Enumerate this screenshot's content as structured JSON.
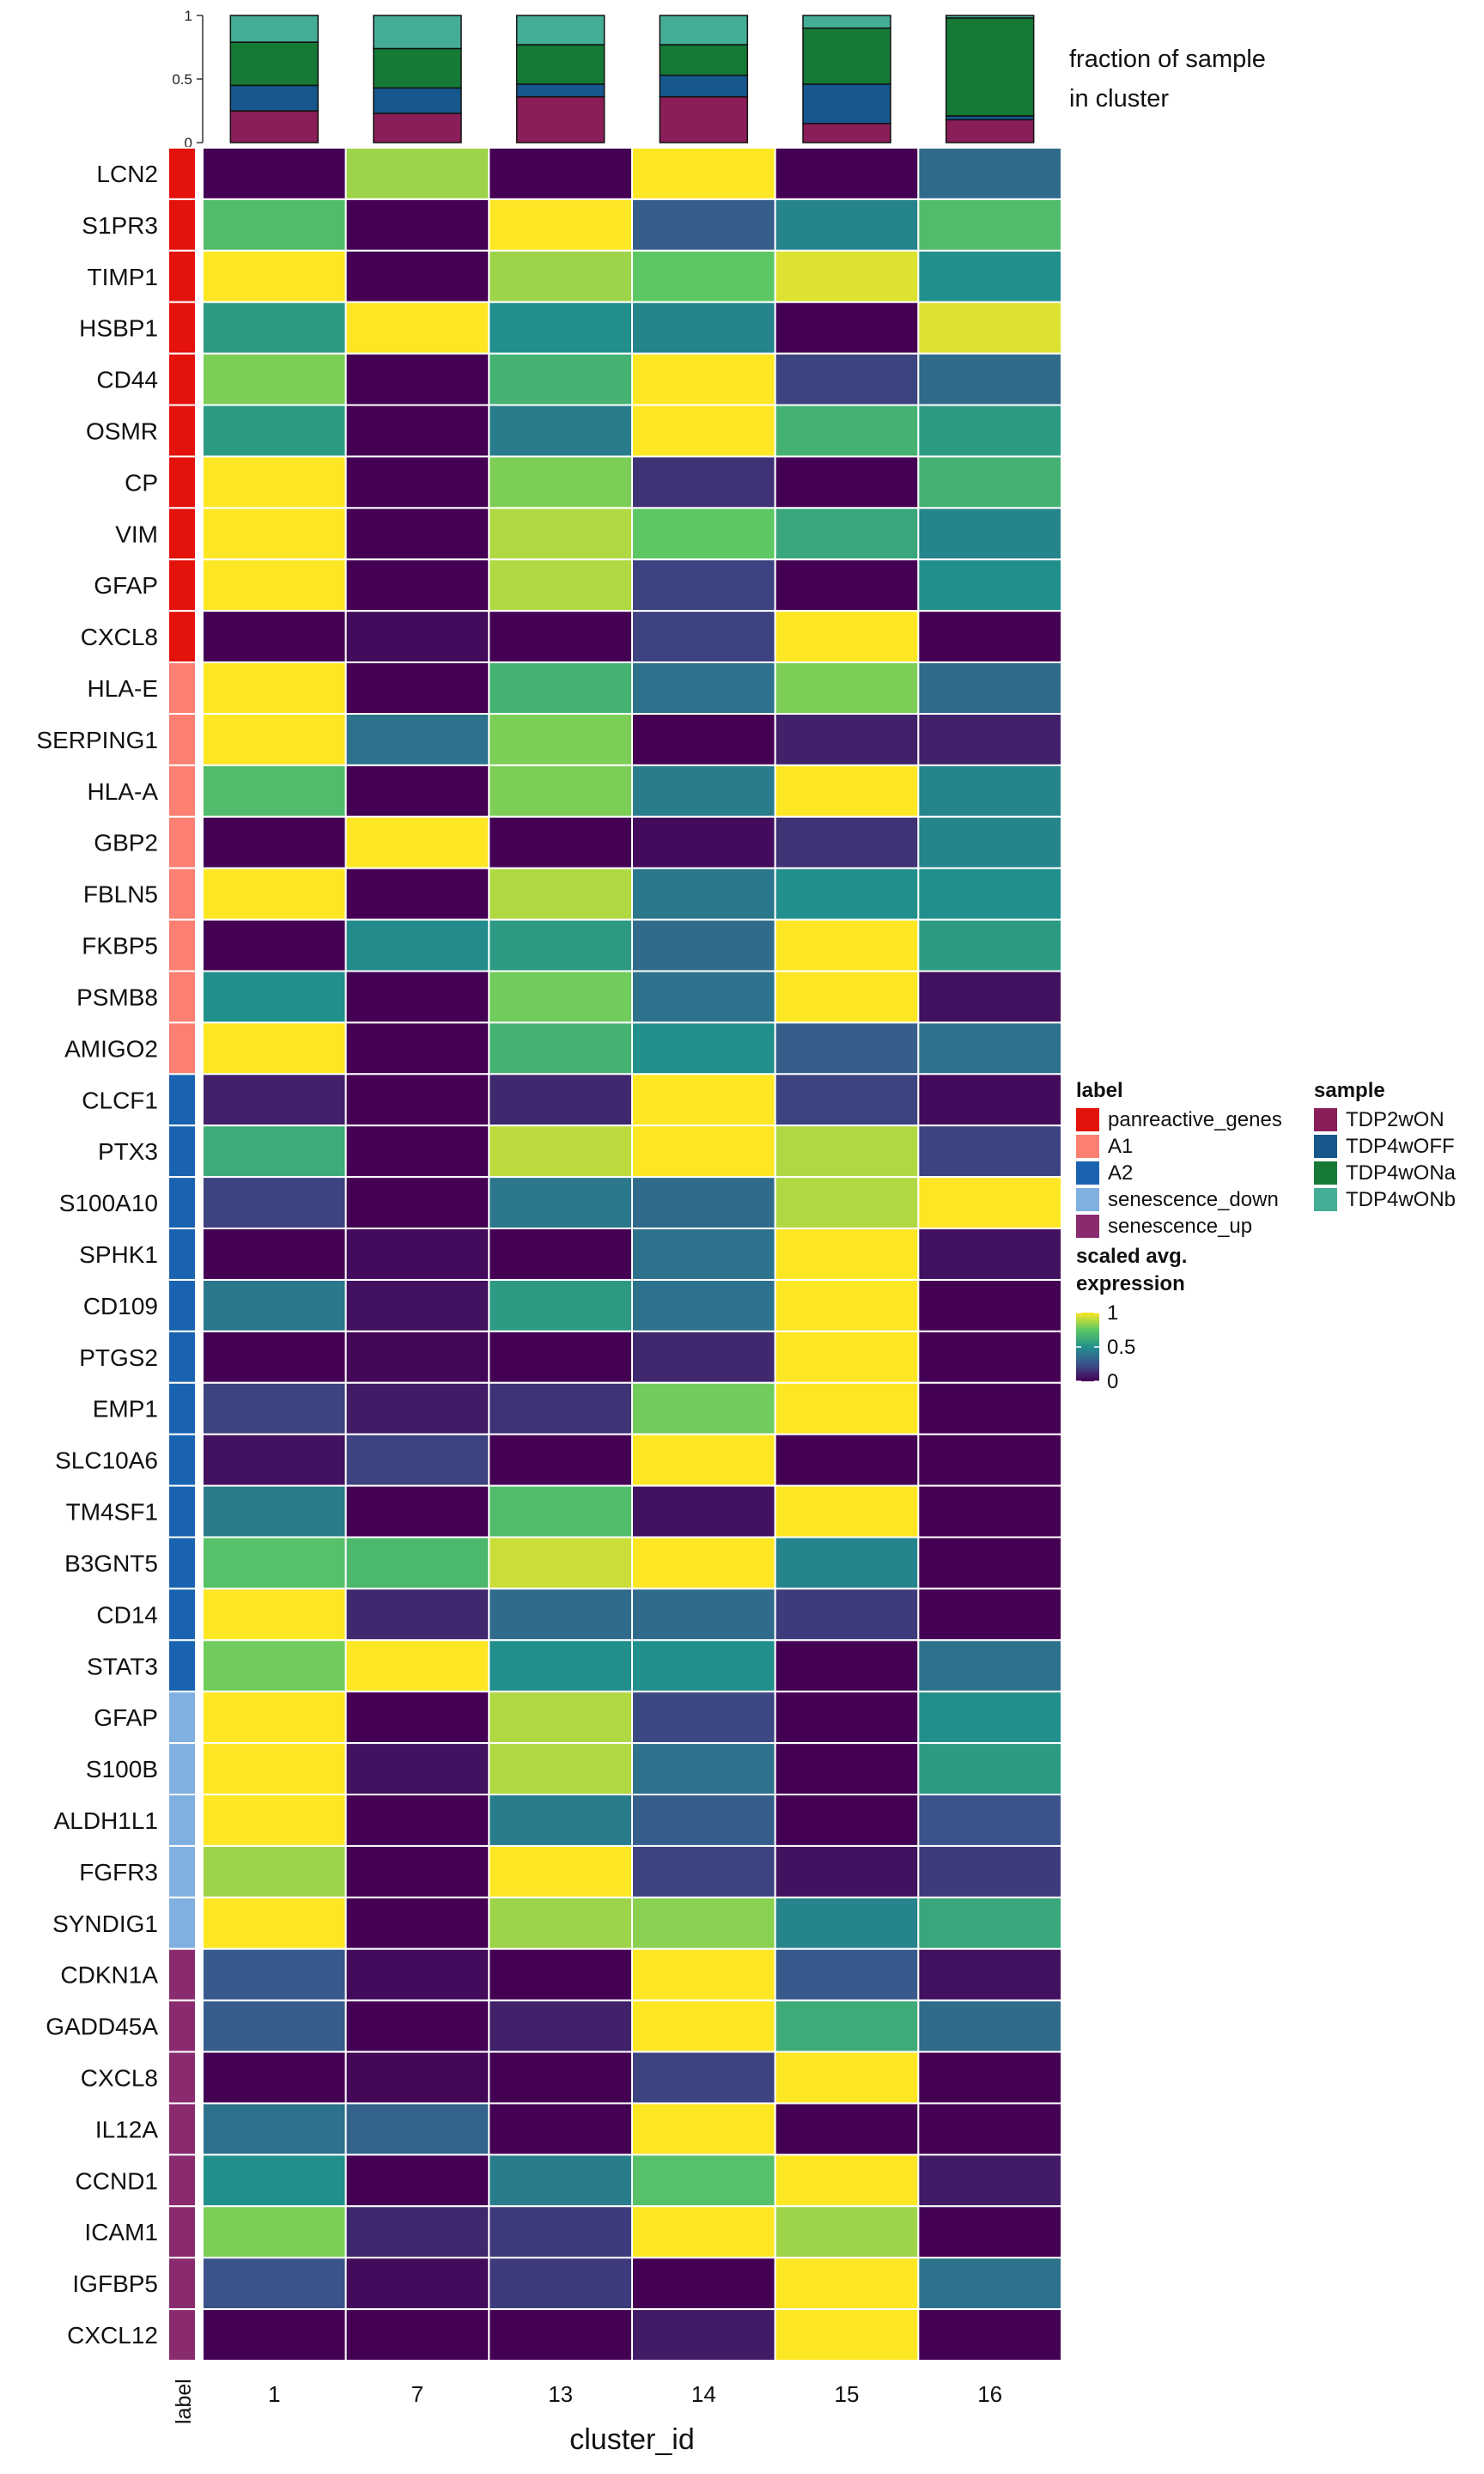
{
  "chart_data": {
    "type": "heatmap",
    "xlabel": "cluster_id",
    "label_axis_title": "label",
    "clusters": [
      "1",
      "7",
      "13",
      "14",
      "15",
      "16"
    ],
    "genes": [
      {
        "gene": "LCN2",
        "group": "panreactive_genes",
        "values": [
          0,
          0.85,
          0,
          1,
          0,
          0.35
        ]
      },
      {
        "gene": "S1PR3",
        "group": "panreactive_genes",
        "values": [
          0.7,
          0,
          1,
          0.3,
          0.45,
          0.7
        ]
      },
      {
        "gene": "TIMP1",
        "group": "panreactive_genes",
        "values": [
          1,
          0,
          0.85,
          0.75,
          0.95,
          0.5
        ]
      },
      {
        "gene": "HSBP1",
        "group": "panreactive_genes",
        "values": [
          0.55,
          1,
          0.5,
          0.45,
          0,
          0.95
        ]
      },
      {
        "gene": "CD44",
        "group": "panreactive_genes",
        "values": [
          0.8,
          0,
          0.65,
          1,
          0.2,
          0.35
        ]
      },
      {
        "gene": "OSMR",
        "group": "panreactive_genes",
        "values": [
          0.55,
          0,
          0.42,
          1,
          0.65,
          0.55
        ]
      },
      {
        "gene": "CP",
        "group": "panreactive_genes",
        "values": [
          1,
          0,
          0.8,
          0.15,
          0,
          0.65
        ]
      },
      {
        "gene": "VIM",
        "group": "panreactive_genes",
        "values": [
          1,
          0,
          0.88,
          0.75,
          0.6,
          0.45
        ]
      },
      {
        "gene": "GFAP",
        "group": "panreactive_genes",
        "values": [
          1,
          0,
          0.88,
          0.2,
          0,
          0.5
        ]
      },
      {
        "gene": "CXCL8",
        "group": "panreactive_genes",
        "values": [
          0,
          0.03,
          0,
          0.2,
          1,
          0
        ]
      },
      {
        "gene": "HLA-E",
        "group": "A1",
        "values": [
          1,
          0,
          0.65,
          0.38,
          0.8,
          0.35
        ]
      },
      {
        "gene": "SERPING1",
        "group": "A1",
        "values": [
          1,
          0.38,
          0.8,
          0,
          0.1,
          0.1
        ]
      },
      {
        "gene": "HLA-A",
        "group": "A1",
        "values": [
          0.7,
          0,
          0.8,
          0.42,
          1,
          0.45
        ]
      },
      {
        "gene": "GBP2",
        "group": "A1",
        "values": [
          0,
          1,
          0,
          0.03,
          0.15,
          0.45
        ]
      },
      {
        "gene": "FBLN5",
        "group": "A1",
        "values": [
          1,
          0,
          0.88,
          0.4,
          0.5,
          0.5
        ]
      },
      {
        "gene": "FKBP5",
        "group": "A1",
        "values": [
          0,
          0.48,
          0.55,
          0.35,
          1,
          0.55
        ]
      },
      {
        "gene": "PSMB8",
        "group": "A1",
        "values": [
          0.5,
          0,
          0.78,
          0.38,
          1,
          0.05
        ]
      },
      {
        "gene": "AMIGO2",
        "group": "A1",
        "values": [
          1,
          0,
          0.65,
          0.5,
          0.3,
          0.38
        ]
      },
      {
        "gene": "CLCF1",
        "group": "A2",
        "values": [
          0.1,
          0,
          0.12,
          1,
          0.2,
          0.03
        ]
      },
      {
        "gene": "PTX3",
        "group": "A2",
        "values": [
          0.62,
          0,
          0.9,
          1,
          0.88,
          0.2
        ]
      },
      {
        "gene": "S100A10",
        "group": "A2",
        "values": [
          0.2,
          0,
          0.4,
          0.35,
          0.88,
          1
        ]
      },
      {
        "gene": "SPHK1",
        "group": "A2",
        "values": [
          0,
          0.03,
          0,
          0.38,
          1,
          0.05
        ]
      },
      {
        "gene": "CD109",
        "group": "A2",
        "values": [
          0.4,
          0.05,
          0.55,
          0.38,
          1,
          0
        ]
      },
      {
        "gene": "PTGS2",
        "group": "A2",
        "values": [
          0,
          0.02,
          0,
          0.12,
          1,
          0
        ]
      },
      {
        "gene": "EMP1",
        "group": "A2",
        "values": [
          0.2,
          0.08,
          0.15,
          0.78,
          1,
          0
        ]
      },
      {
        "gene": "SLC10A6",
        "group": "A2",
        "values": [
          0.05,
          0.2,
          0,
          1,
          0,
          0
        ]
      },
      {
        "gene": "TM4SF1",
        "group": "A2",
        "values": [
          0.42,
          0,
          0.7,
          0.05,
          1,
          0
        ]
      },
      {
        "gene": "B3GNT5",
        "group": "A2",
        "values": [
          0.72,
          0.68,
          0.92,
          1,
          0.45,
          0
        ]
      },
      {
        "gene": "CD14",
        "group": "A2",
        "values": [
          1,
          0.12,
          0.35,
          0.35,
          0.18,
          0
        ]
      },
      {
        "gene": "STAT3",
        "group": "A2",
        "values": [
          0.78,
          1,
          0.5,
          0.5,
          0,
          0.38
        ]
      },
      {
        "gene": "GFAP",
        "group": "senescence_down",
        "values": [
          1,
          0,
          0.88,
          0.22,
          0,
          0.5
        ]
      },
      {
        "gene": "S100B",
        "group": "senescence_down",
        "values": [
          1,
          0.05,
          0.88,
          0.38,
          0,
          0.55
        ]
      },
      {
        "gene": "ALDH1L1",
        "group": "senescence_down",
        "values": [
          1,
          0,
          0.42,
          0.3,
          0,
          0.25
        ]
      },
      {
        "gene": "FGFR3",
        "group": "senescence_down",
        "values": [
          0.85,
          0,
          1,
          0.2,
          0.05,
          0.18
        ]
      },
      {
        "gene": "SYNDIG1",
        "group": "senescence_down",
        "values": [
          1,
          0,
          0.85,
          0.82,
          0.45,
          0.6
        ]
      },
      {
        "gene": "CDKN1A",
        "group": "senescence_up",
        "values": [
          0.28,
          0.03,
          0,
          1,
          0.28,
          0.05
        ]
      },
      {
        "gene": "GADD45A",
        "group": "senescence_up",
        "values": [
          0.3,
          0,
          0.1,
          1,
          0.62,
          0.35
        ]
      },
      {
        "gene": "CXCL8",
        "group": "senescence_up",
        "values": [
          0,
          0.02,
          0,
          0.2,
          1,
          0
        ]
      },
      {
        "gene": "IL12A",
        "group": "senescence_up",
        "values": [
          0.38,
          0.32,
          0,
          1,
          0,
          0
        ]
      },
      {
        "gene": "CCND1",
        "group": "senescence_up",
        "values": [
          0.5,
          0,
          0.42,
          0.72,
          1,
          0.08
        ]
      },
      {
        "gene": "ICAM1",
        "group": "senescence_up",
        "values": [
          0.8,
          0.12,
          0.18,
          1,
          0.85,
          0
        ]
      },
      {
        "gene": "IGFBP5",
        "group": "senescence_up",
        "values": [
          0.25,
          0.03,
          0.18,
          0,
          1,
          0.38
        ]
      },
      {
        "gene": "CXCL12",
        "group": "senescence_up",
        "values": [
          0,
          0,
          0,
          0.08,
          1,
          0
        ]
      }
    ],
    "top_bar": {
      "type": "stacked-bar",
      "ylabel_lines": [
        "fraction of sample",
        "in cluster"
      ],
      "ylim": [
        0,
        1
      ],
      "yticks": [
        "0",
        "0.5",
        "1"
      ],
      "ytick_values": [
        0,
        0.5,
        1
      ],
      "series_order_bottom_to_top": [
        "TDP2wON",
        "TDP4wOFF",
        "TDP4wONa",
        "TDP4wONb"
      ],
      "fractions": [
        [
          0.25,
          0.2,
          0.34,
          0.21
        ],
        [
          0.23,
          0.2,
          0.31,
          0.26
        ],
        [
          0.36,
          0.1,
          0.31,
          0.23
        ],
        [
          0.36,
          0.17,
          0.24,
          0.23
        ],
        [
          0.15,
          0.31,
          0.44,
          0.1
        ],
        [
          0.18,
          0.03,
          0.77,
          0.02
        ]
      ]
    },
    "legend_label": {
      "title": "label",
      "items": [
        {
          "name": "panreactive_genes",
          "color": "#E3120B"
        },
        {
          "name": "A1",
          "color": "#FB8072"
        },
        {
          "name": "A2",
          "color": "#1A63B0"
        },
        {
          "name": "senescence_down",
          "color": "#7FB0E0"
        },
        {
          "name": "senescence_up",
          "color": "#8B2B6F"
        }
      ]
    },
    "legend_sample": {
      "title": "sample",
      "items": [
        {
          "name": "TDP2wON",
          "color": "#8A1E58"
        },
        {
          "name": "TDP4wOFF",
          "color": "#16588D"
        },
        {
          "name": "TDP4wONa",
          "color": "#167A36"
        },
        {
          "name": "TDP4wONb",
          "color": "#45AD96"
        }
      ]
    },
    "colorbar": {
      "title_lines": [
        "scaled avg.",
        "expression"
      ],
      "ticks": [
        "1",
        "0.5",
        "0"
      ],
      "tick_values": [
        1,
        0.5,
        0
      ],
      "colormap": "viridis",
      "range": [
        0,
        1
      ]
    }
  }
}
